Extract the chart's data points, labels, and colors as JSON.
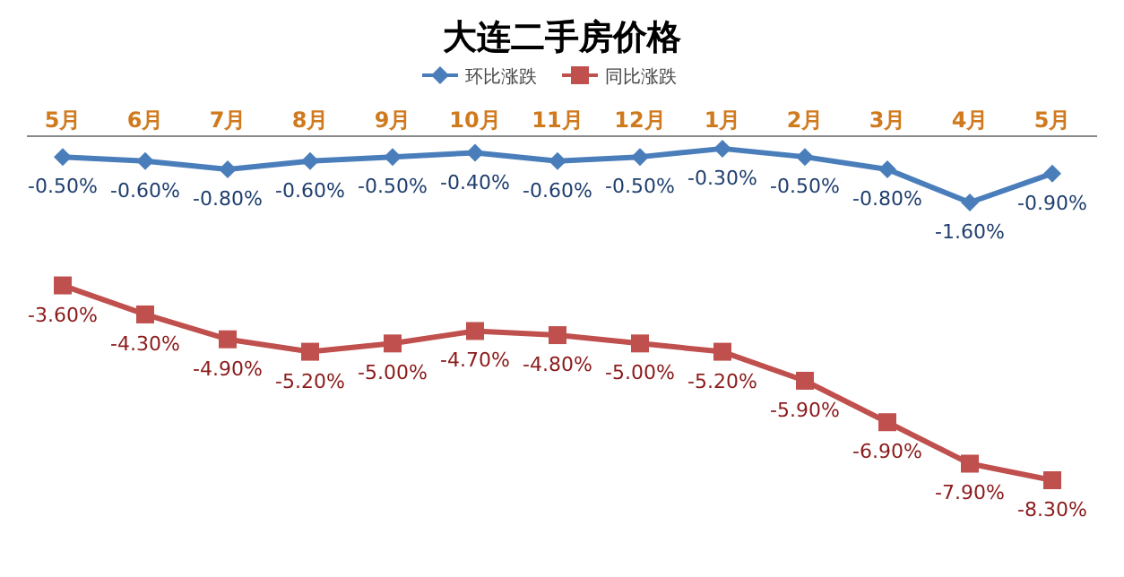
{
  "chart_data": {
    "type": "line",
    "title": "大连二手房价格",
    "legend": "top",
    "categories": [
      "5月",
      "6月",
      "7月",
      "8月",
      "9月",
      "10月",
      "11月",
      "12月",
      "1月",
      "2月",
      "3月",
      "4月",
      "5月"
    ],
    "series": [
      {
        "name": "环比涨跌",
        "color": "#4a7ebb",
        "marker": "diamond",
        "values": [
          -0.5,
          -0.6,
          -0.8,
          -0.6,
          -0.5,
          -0.4,
          -0.6,
          -0.5,
          -0.3,
          -0.5,
          -0.8,
          -1.6,
          -0.9
        ],
        "value_labels": [
          "-0.50%",
          "-0.60%",
          "-0.80%",
          "-0.60%",
          "-0.50%",
          "-0.40%",
          "-0.60%",
          "-0.50%",
          "-0.30%",
          "-0.50%",
          "-0.80%",
          "-1.60%",
          "-0.90%"
        ]
      },
      {
        "name": "同比涨跌",
        "color": "#c0504d",
        "marker": "square",
        "values": [
          -3.6,
          -4.3,
          -4.9,
          -5.2,
          -5.0,
          -4.7,
          -4.8,
          -5.0,
          -5.2,
          -5.9,
          -6.9,
          -7.9,
          -8.3
        ],
        "value_labels": [
          "-3.60%",
          "-4.30%",
          "-4.90%",
          "-5.20%",
          "-5.00%",
          "-4.70%",
          "-4.80%",
          "-5.00%",
          "-5.20%",
          "-5.90%",
          "-6.90%",
          "-7.90%",
          "-8.30%"
        ]
      }
    ]
  }
}
